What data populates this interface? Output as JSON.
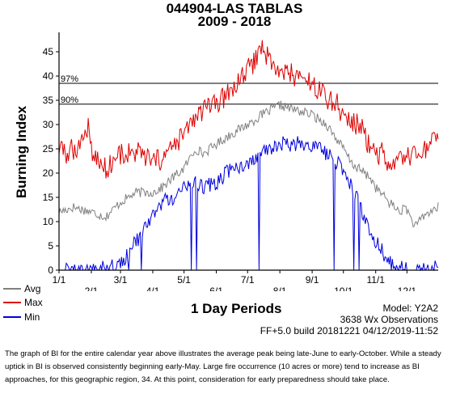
{
  "header": {
    "station": "044904-LAS TABLAS",
    "years": "2009 - 2018"
  },
  "chart_data": {
    "type": "line",
    "ylabel": "Burning Index",
    "xlabel": "1 Day Periods",
    "ylim": [
      0,
      49
    ],
    "yticks": [
      0,
      5,
      10,
      15,
      20,
      25,
      30,
      35,
      40,
      45
    ],
    "xticks": [
      "1/1",
      "2/1",
      "3/1",
      "4/1",
      "5/1",
      "6/1",
      "7/1",
      "8/1",
      "9/1",
      "10/1",
      "11/1",
      "12/1"
    ],
    "thresholds": [
      {
        "label": "97%",
        "value": 38.5
      },
      {
        "label": "90%",
        "value": 34.2
      }
    ],
    "series": [
      {
        "name": "Avg",
        "color": "#808080",
        "key_values": [
          [
            1,
            12
          ],
          [
            15,
            13
          ],
          [
            32,
            12
          ],
          [
            46,
            11
          ],
          [
            60,
            14
          ],
          [
            75,
            16
          ],
          [
            91,
            16
          ],
          [
            100,
            17
          ],
          [
            110,
            19
          ],
          [
            121,
            21
          ],
          [
            132,
            25
          ],
          [
            140,
            24
          ],
          [
            152,
            26
          ],
          [
            166,
            28
          ],
          [
            182,
            30
          ],
          [
            196,
            32
          ],
          [
            213,
            34
          ],
          [
            228,
            33
          ],
          [
            244,
            32
          ],
          [
            258,
            30
          ],
          [
            274,
            25
          ],
          [
            282,
            22
          ],
          [
            288,
            21
          ],
          [
            300,
            19
          ],
          [
            305,
            17
          ],
          [
            318,
            14
          ],
          [
            328,
            12
          ],
          [
            334,
            13
          ],
          [
            340,
            10
          ],
          [
            344,
            9
          ],
          [
            350,
            11
          ],
          [
            357,
            12
          ],
          [
            365,
            13
          ]
        ]
      },
      {
        "name": "Max",
        "color": "#dd0000",
        "key_values": [
          [
            1,
            25
          ],
          [
            8,
            24
          ],
          [
            15,
            25
          ],
          [
            22,
            26
          ],
          [
            29,
            30
          ],
          [
            33,
            24
          ],
          [
            40,
            22
          ],
          [
            46,
            21
          ],
          [
            55,
            23
          ],
          [
            60,
            24
          ],
          [
            70,
            24
          ],
          [
            80,
            24
          ],
          [
            91,
            22
          ],
          [
            100,
            23
          ],
          [
            110,
            25
          ],
          [
            121,
            28
          ],
          [
            130,
            31
          ],
          [
            140,
            33
          ],
          [
            152,
            34
          ],
          [
            166,
            37
          ],
          [
            182,
            41
          ],
          [
            191,
            44
          ],
          [
            196,
            46
          ],
          [
            205,
            43
          ],
          [
            213,
            40
          ],
          [
            220,
            41
          ],
          [
            228,
            40
          ],
          [
            238,
            39
          ],
          [
            244,
            38
          ],
          [
            252,
            37
          ],
          [
            260,
            35
          ],
          [
            266,
            35
          ],
          [
            274,
            32
          ],
          [
            282,
            30
          ],
          [
            290,
            30
          ],
          [
            298,
            26
          ],
          [
            305,
            24
          ],
          [
            312,
            24
          ],
          [
            318,
            20
          ],
          [
            325,
            22
          ],
          [
            335,
            23
          ],
          [
            345,
            24
          ],
          [
            355,
            25
          ],
          [
            365,
            27
          ]
        ]
      },
      {
        "name": "Min",
        "color": "#0000dd",
        "key_values": [
          [
            1,
            0
          ],
          [
            30,
            0
          ],
          [
            60,
            1
          ],
          [
            100,
            14
          ],
          [
            110,
            15
          ],
          [
            121,
            17
          ],
          [
            131,
            18
          ],
          [
            140,
            17
          ],
          [
            152,
            18
          ],
          [
            166,
            21
          ],
          [
            182,
            22
          ],
          [
            196,
            24
          ],
          [
            213,
            26
          ],
          [
            228,
            26
          ],
          [
            244,
            26
          ],
          [
            258,
            24
          ],
          [
            274,
            21
          ],
          [
            282,
            17
          ],
          [
            289,
            14
          ],
          [
            296,
            10
          ],
          [
            305,
            6
          ],
          [
            320,
            1
          ],
          [
            340,
            0
          ],
          [
            360,
            0
          ],
          [
            365,
            2
          ]
        ]
      }
    ]
  },
  "legend": {
    "avg": "Avg",
    "max": "Max",
    "min": "Min"
  },
  "info": {
    "model": "Model: Y2A2",
    "obs": "3638 Wx Observations",
    "build": "FF+5.0 build 20181221 04/12/2019-11:52"
  },
  "caption": "The graph of BI for the entire calendar year above illustrates the average peak being late-June to early-October. While a steady uptick in BI is observed consistently beginning early-May.  Large fire occurrence (10 acres or more) tend to increase as BI approaches, for this geographic region, 34. At this point, consideration for early preparedness should take place.",
  "colors": {
    "avg": "#808080",
    "max": "#dd0000",
    "min": "#0000dd",
    "threshold": "#000000"
  }
}
